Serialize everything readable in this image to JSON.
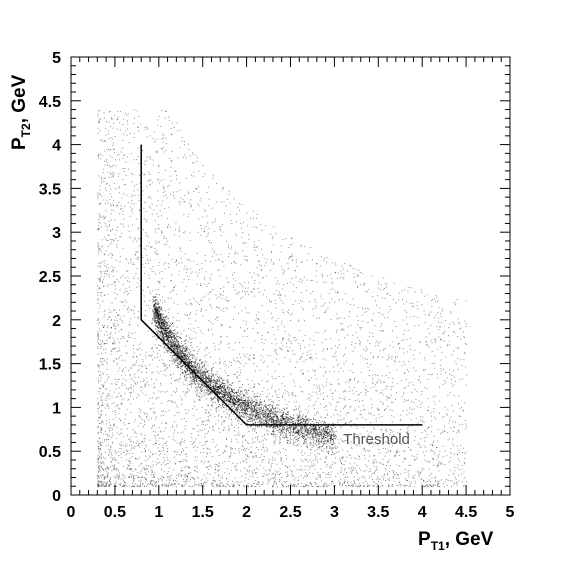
{
  "chart_data": {
    "type": "scatter",
    "title": "",
    "xlabel": {
      "main": "P",
      "sub": "T1",
      "suffix": ", GeV"
    },
    "ylabel": {
      "main": "P",
      "sub": "T2",
      "suffix": ", GeV"
    },
    "xlim": [
      0,
      5
    ],
    "ylim": [
      0,
      5
    ],
    "x_ticks": [
      "0",
      "0.5",
      "1",
      "1.5",
      "2",
      "2.5",
      "3",
      "3.5",
      "4",
      "4.5",
      "5"
    ],
    "y_ticks": [
      "0",
      "0.5",
      "1",
      "1.5",
      "2",
      "2.5",
      "3",
      "3.5",
      "4",
      "4.5",
      "5"
    ],
    "grid": false,
    "legend": "none",
    "threshold": {
      "label": "Threshold",
      "label_at": {
        "x": 3.1,
        "y": 0.58
      },
      "points": [
        [
          0.8,
          4.0
        ],
        [
          0.8,
          2.0
        ],
        [
          2.0,
          0.8
        ],
        [
          4.0,
          0.8
        ]
      ]
    },
    "distribution": {
      "description_shape": "band_plus_diffuse",
      "band_x_range": [
        0.95,
        3.0
      ],
      "band_product": 2.0,
      "diffuse_x_range": [
        0.3,
        4.5
      ],
      "diffuse_y_range": [
        0.1,
        4.4
      ]
    },
    "colors": {
      "points": "#000000",
      "threshold_line": "#000000",
      "annotation": "#555555"
    }
  }
}
